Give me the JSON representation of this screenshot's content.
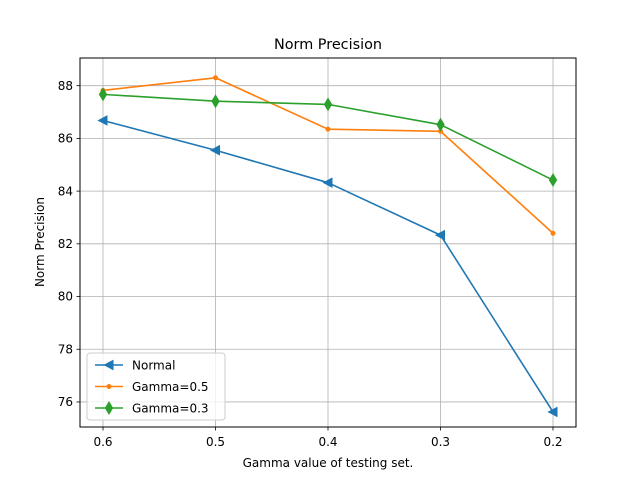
{
  "chart_data": {
    "type": "line",
    "title": "Norm Precision",
    "xlabel": "Gamma value of testing set.",
    "ylabel": "Norm Precision",
    "categories": [
      "0.6",
      "0.5",
      "0.4",
      "0.3",
      "0.2"
    ],
    "ylim": [
      75.05,
      89.05
    ],
    "yticks": [
      76,
      78,
      80,
      82,
      84,
      86,
      88
    ],
    "grid": true,
    "legend_position": "lower-left",
    "series": [
      {
        "name": "Normal",
        "color": "#1f77b4",
        "marker": "triangle-left",
        "values": [
          86.68,
          85.55,
          84.32,
          82.33,
          75.62
        ]
      },
      {
        "name": "Gamma=0.5",
        "color": "#ff7f0e",
        "marker": "point",
        "values": [
          87.82,
          88.3,
          86.35,
          86.27,
          82.4
        ]
      },
      {
        "name": "Gamma=0.3",
        "color": "#2ca02c",
        "marker": "thin-diamond",
        "values": [
          87.67,
          87.41,
          87.29,
          86.52,
          84.42
        ]
      }
    ]
  }
}
